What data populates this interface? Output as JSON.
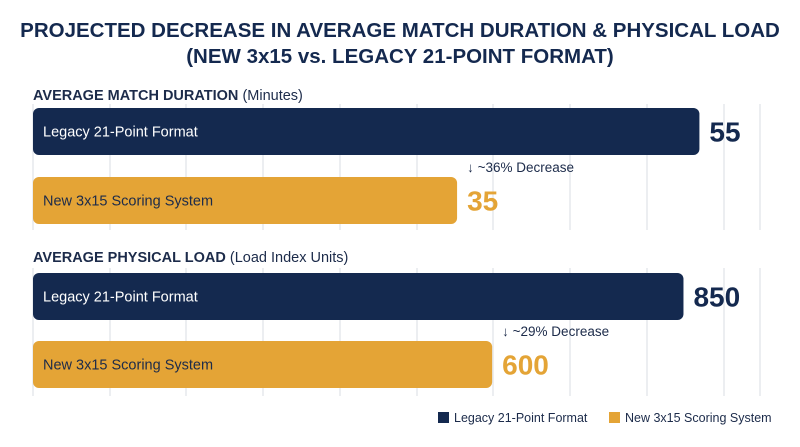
{
  "colors": {
    "legacy": "#14294f",
    "new": "#e4a436",
    "text": "#1c2b4a",
    "grid": "#d9dde3"
  },
  "chart_data": {
    "type": "bar",
    "orientation": "horizontal",
    "title_line1": "PROJECTED DECREASE IN AVERAGE MATCH DURATION & PHYSICAL LOAD",
    "title_line2": "(NEW 3x15 vs. LEGACY 21-POINT FORMAT)",
    "grid": true,
    "legend_position": "bottom-right",
    "legend": [
      "Legacy 21-Point Format",
      "New 3x15 Scoring System"
    ],
    "panels": [
      {
        "heading": "AVERAGE MATCH DURATION",
        "unit": "(Minutes)",
        "xlim": [
          0,
          60
        ],
        "bars": [
          {
            "label": "Legacy 21-Point Format",
            "value": 55,
            "value_label": "55",
            "series": "legacy"
          },
          {
            "label": "New 3x15 Scoring System",
            "value": 35,
            "value_label": "35",
            "series": "new"
          }
        ],
        "annotation": "↓ ~36% Decrease"
      },
      {
        "heading": "AVERAGE PHYSICAL LOAD",
        "unit": "(Load Index Units)",
        "xlim": [
          0,
          950
        ],
        "bars": [
          {
            "label": "Legacy 21-Point Format",
            "value": 850,
            "value_label": "850",
            "series": "legacy"
          },
          {
            "label": "New 3x15 Scoring System",
            "value": 600,
            "value_label": "600",
            "series": "new"
          }
        ],
        "annotation": "↓ ~29% Decrease"
      }
    ]
  }
}
